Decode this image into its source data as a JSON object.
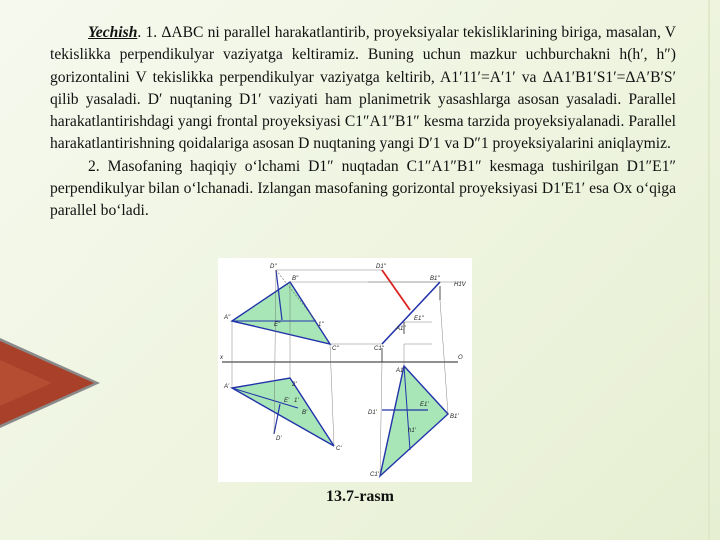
{
  "colors": {
    "background": "#f1f6e6",
    "triangle_fill": "#a8e6b8",
    "projection_line": "#2233aa",
    "true_length_line": "#dd2222",
    "decor_dark": "#8a8a8a",
    "decor_accent": "#a8402a"
  },
  "paragraph1": {
    "title": "Yechish",
    "text": ". 1. ΔABC ni parallel harakatlantirib, proyeksiyalar tekisliklarining biriga, masalan, V tekislikka perpendikulyar vaziyatga keltiramiz. Buning uchun mazkur uchburchakni h(h′, h″) gorizontalini V tekislikka perpendikulyar vaziyatga keltirib, A1′11′=A′1′ va ΔA1′B1′S1′=ΔA′B′S′ qilib yasaladi. D′ nuqtaning D1′ vaziyati ham planimetrik yasashlarga asosan yasaladi. Parallel harakatlantirishdagi yangi frontal proyeksiyasi C1″A1″B1″ kesma tarzida proyeksiyalanadi. Parallel harakatlantirishning qoidalariga asosan D nuqtaning yangi D′1 va D″1 proyeksiyalarini aniqlaymiz."
  },
  "paragraph2": {
    "text": "2. Masofaning haqiqiy o‘lchami D1″ nuqtadan C1″A1″B1″ kesmaga tushirilgan D1″E1″ perpendikulyar bilan o‘lchanadi. Izlangan masofaning gorizontal proyeksiyasi D1′E1′ esa Ox o‘qiga parallel bo‘ladi."
  },
  "figure": {
    "caption": "13.7-rasm",
    "labels": {
      "D2": "D\"",
      "B2": "B\"",
      "A2": "A\"",
      "E2": "E\"",
      "one2": "1\"",
      "C2": "C\"",
      "x": "x",
      "A1": "A'",
      "two1": "2'",
      "B1": "B'",
      "E1": "E'",
      "one1": "1'",
      "D1": "D'",
      "C1": "C'",
      "D1f": "D1\"",
      "B1f": "B1\"",
      "H1V": "H1V",
      "A1f": "A1\"",
      "E1f": "E1\"",
      "C1f": "C1\"",
      "O": "O",
      "A1h": "A1'",
      "D1h": "D1'",
      "E1h": "E1'",
      "B1h": "B1'",
      "h1": "h1'",
      "C1h": "C1'"
    }
  }
}
